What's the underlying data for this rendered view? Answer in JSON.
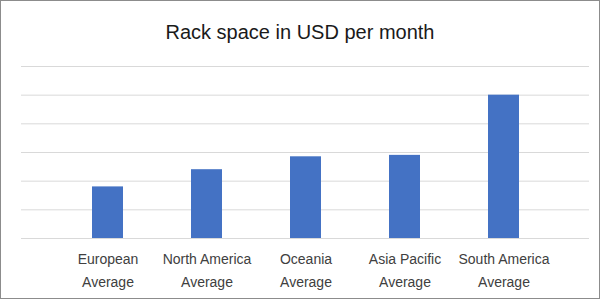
{
  "chart_data": {
    "type": "bar",
    "title": "Rack space in USD per month",
    "categories": [
      "European Average",
      "North America Average",
      "Oceania Average",
      "Asia Pacific Average",
      "South America Average"
    ],
    "values": [
      1.8,
      2.4,
      2.85,
      2.9,
      5.0
    ],
    "color": "#4472c4",
    "ylim": [
      0,
      6
    ],
    "yticks": [
      0,
      1,
      2,
      3,
      4,
      5,
      6
    ],
    "grid": true,
    "tick_labels": "x"
  }
}
